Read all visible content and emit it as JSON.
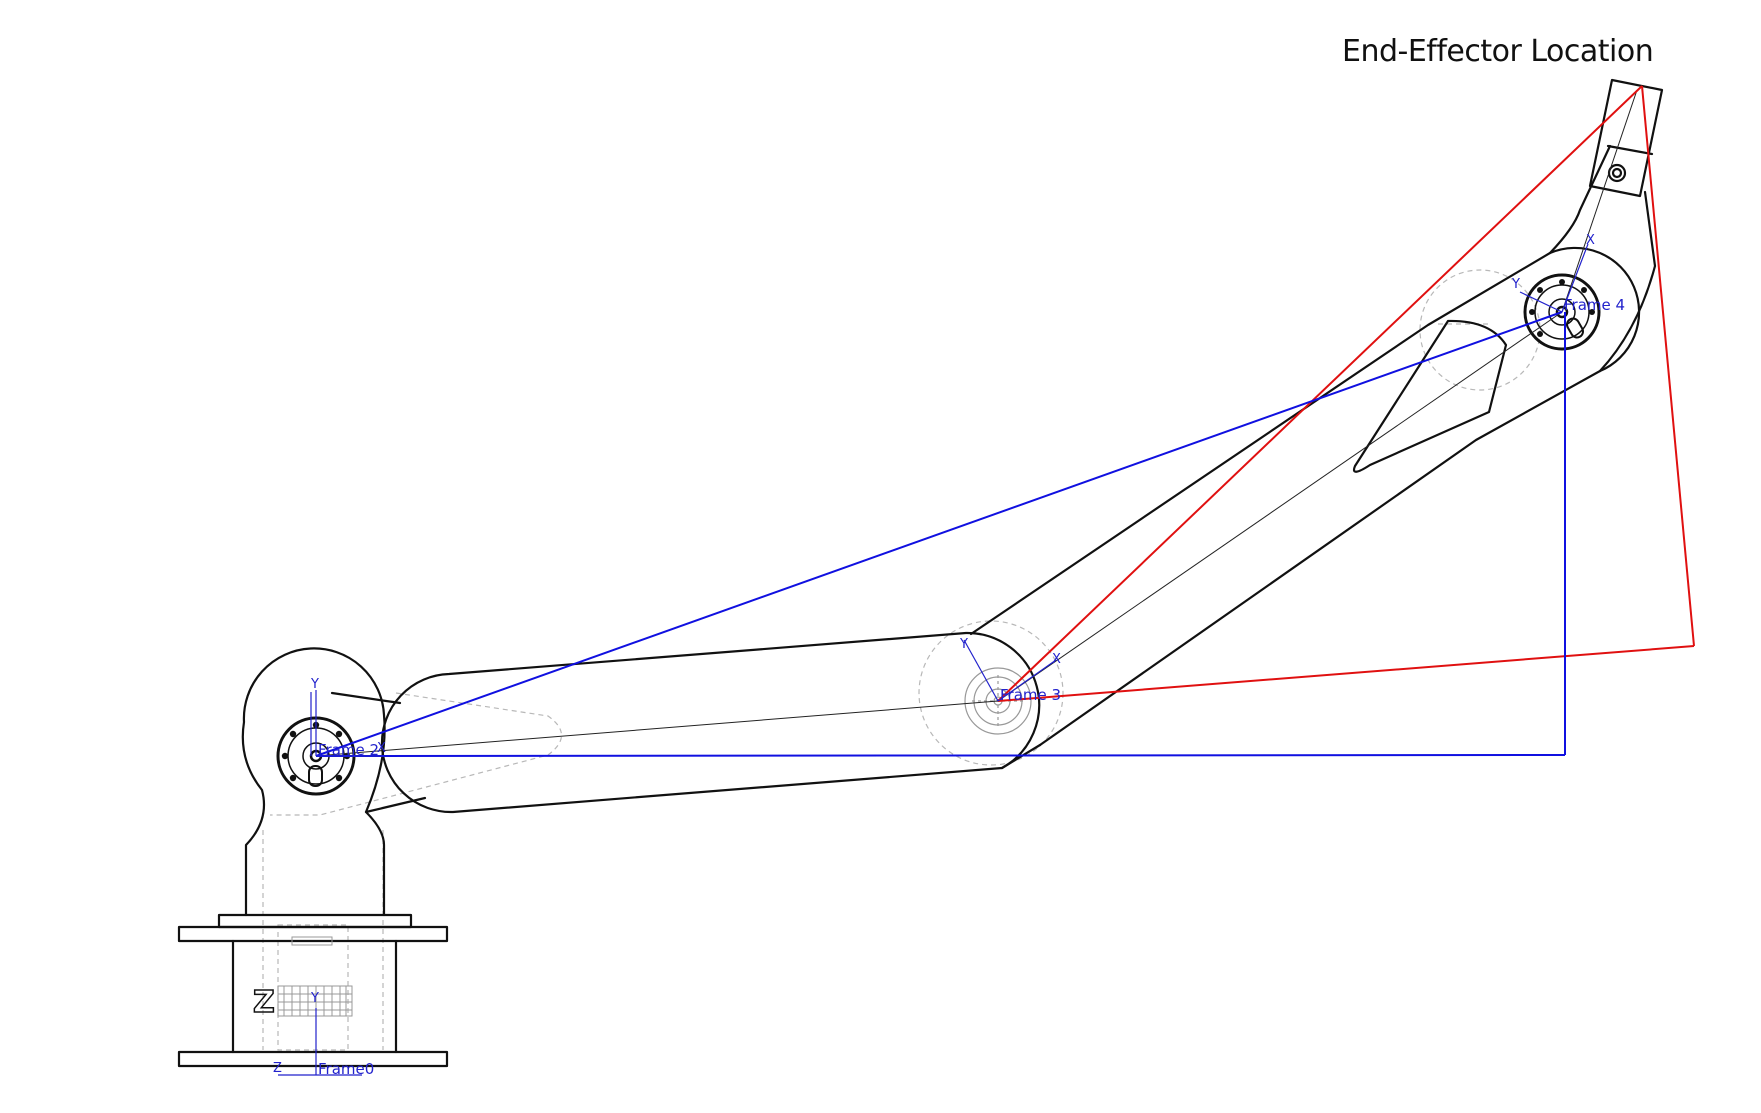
{
  "title": "End-Effector Location",
  "frames": {
    "frame0": "Frame0",
    "frame2": "Frame 2",
    "frame3": "Frame 3",
    "frame4": "Frame 4"
  },
  "axes": {
    "x": "X",
    "y": "Y",
    "z": "Z"
  },
  "base_letter": "Z",
  "colors": {
    "outline": "#111111",
    "frame_axes": "#2222cc",
    "red_vectors": "#e01010",
    "blue_vectors": "#1010e0",
    "hidden_lines": "#b0b0b0"
  }
}
